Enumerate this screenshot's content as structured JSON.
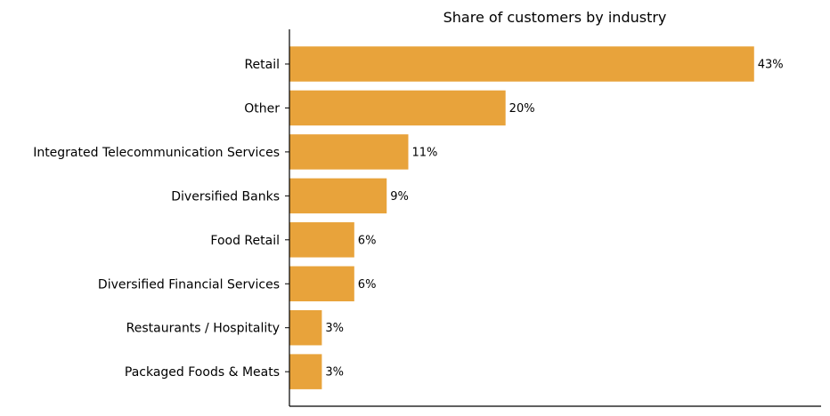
{
  "chart_data": {
    "type": "bar",
    "orientation": "horizontal",
    "title": "Share of customers by industry",
    "xlabel": "",
    "ylabel": "",
    "categories": [
      "Retail",
      "Other",
      "Integrated Telecommunication Services",
      "Diversified Banks",
      "Food Retail",
      "Diversified Financial Services",
      "Restaurants / Hospitality",
      "Packaged Foods & Meats"
    ],
    "values": [
      43,
      20,
      11,
      9,
      6,
      6,
      3,
      3
    ],
    "value_labels": [
      "43%",
      "20%",
      "11%",
      "9%",
      "6%",
      "6%",
      "3%",
      "3%"
    ],
    "xlim": [
      0,
      49.2
    ],
    "x_axis_visible": false,
    "grid": false,
    "legend": "none",
    "bar_color": "#E8A33B",
    "spines": "left-bottom"
  }
}
